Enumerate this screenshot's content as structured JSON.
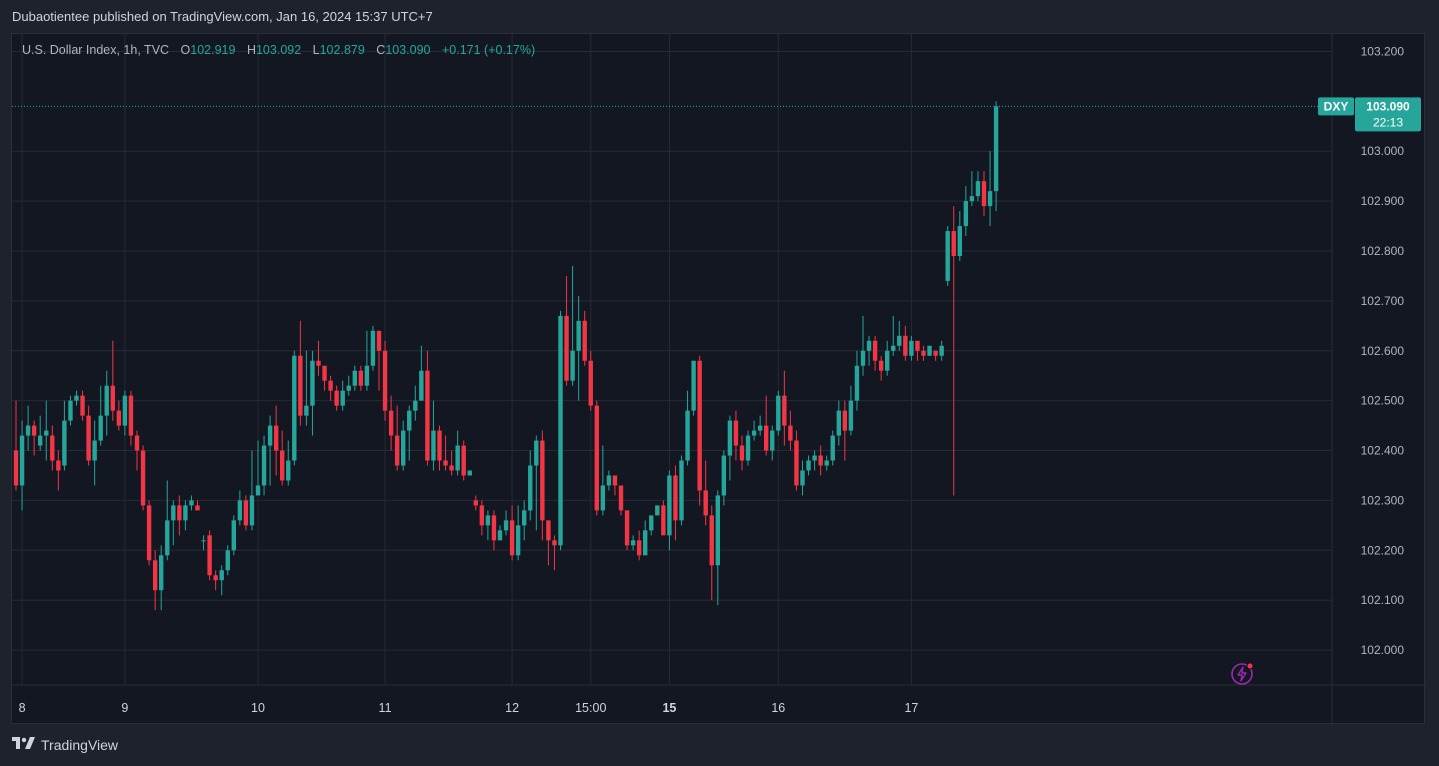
{
  "header": {
    "published": "Dubaotientee published on TradingView.com, Jan 16, 2024 15:37 UTC+7"
  },
  "legend": {
    "symbol": "U.S. Dollar Index, 1h, TVC",
    "open_label": "O",
    "open": "102.919",
    "high_label": "H",
    "high": "103.092",
    "low_label": "L",
    "low": "102.879",
    "close_label": "C",
    "close": "103.090",
    "change": "+0.171 (+0.17%)"
  },
  "price_tag": {
    "symbol": "DXY",
    "price": "103.090",
    "countdown": "22:13"
  },
  "footer": {
    "brand": "TradingView"
  },
  "colors": {
    "up": "#26a69a",
    "down": "#f23645",
    "grid": "#262a35",
    "background": "#131722"
  },
  "chart_data": {
    "type": "candlestick",
    "ylim": [
      101.93,
      103.235
    ],
    "yticks": [
      "103.200",
      "103.000",
      "102.900",
      "102.800",
      "102.700",
      "102.600",
      "102.500",
      "102.400",
      "102.300",
      "102.200",
      "102.100",
      "102.000"
    ],
    "xticks": [
      {
        "label": "8",
        "index": 1
      },
      {
        "label": "9",
        "index": 18
      },
      {
        "label": "10",
        "index": 40
      },
      {
        "label": "11",
        "index": 61
      },
      {
        "label": "12",
        "index": 82
      },
      {
        "label": "15:00",
        "index": 95
      },
      {
        "label": "15",
        "index": 108
      },
      {
        "label": "16",
        "index": 126
      },
      {
        "label": "17",
        "index": 148
      }
    ],
    "last_price": 103.09,
    "candles": [
      [
        102.4,
        102.33,
        102.5,
        102.32
      ],
      [
        102.33,
        102.43,
        102.46,
        102.28
      ],
      [
        102.43,
        102.45,
        102.49,
        102.4
      ],
      [
        102.45,
        102.43,
        102.46,
        102.39
      ],
      [
        102.41,
        102.43,
        102.47,
        102.4
      ],
      [
        102.43,
        102.44,
        102.5,
        102.38
      ],
      [
        102.43,
        102.38,
        102.45,
        102.36
      ],
      [
        102.38,
        102.36,
        102.4,
        102.32
      ],
      [
        102.37,
        102.46,
        102.5,
        102.36
      ],
      [
        102.46,
        102.5,
        102.51,
        102.45
      ],
      [
        102.5,
        102.51,
        102.52,
        102.49
      ],
      [
        102.51,
        102.47,
        102.52,
        102.46
      ],
      [
        102.47,
        102.38,
        102.49,
        102.37
      ],
      [
        102.38,
        102.42,
        102.46,
        102.33
      ],
      [
        102.42,
        102.47,
        102.53,
        102.41
      ],
      [
        102.47,
        102.53,
        102.56,
        102.43
      ],
      [
        102.53,
        102.48,
        102.62,
        102.46
      ],
      [
        102.48,
        102.45,
        102.5,
        102.44
      ],
      [
        102.45,
        102.51,
        102.52,
        102.43
      ],
      [
        102.51,
        102.43,
        102.52,
        102.41
      ],
      [
        102.43,
        102.4,
        102.44,
        102.36
      ],
      [
        102.4,
        102.29,
        102.41,
        102.28
      ],
      [
        102.29,
        102.18,
        102.3,
        102.17
      ],
      [
        102.18,
        102.12,
        102.2,
        102.08
      ],
      [
        102.12,
        102.19,
        102.21,
        102.08
      ],
      [
        102.19,
        102.26,
        102.34,
        102.18
      ],
      [
        102.26,
        102.29,
        102.3,
        102.21
      ],
      [
        102.29,
        102.26,
        102.31,
        102.23
      ],
      [
        102.26,
        102.29,
        102.3,
        102.24
      ],
      [
        102.29,
        102.3,
        102.31,
        102.28
      ],
      [
        102.29,
        102.28,
        102.3,
        102.28
      ],
      [
        102.22,
        102.22,
        102.23,
        102.2
      ],
      [
        102.23,
        102.15,
        102.24,
        102.14
      ],
      [
        102.15,
        102.14,
        102.16,
        102.12
      ],
      [
        102.14,
        102.16,
        102.17,
        102.11
      ],
      [
        102.16,
        102.2,
        102.21,
        102.15
      ],
      [
        102.2,
        102.26,
        102.27,
        102.19
      ],
      [
        102.26,
        102.3,
        102.32,
        102.25
      ],
      [
        102.3,
        102.25,
        102.31,
        102.24
      ],
      [
        102.25,
        102.31,
        102.4,
        102.24
      ],
      [
        102.31,
        102.33,
        102.42,
        102.31
      ],
      [
        102.33,
        102.41,
        102.43,
        102.31
      ],
      [
        102.41,
        102.45,
        102.47,
        102.33
      ],
      [
        102.45,
        102.4,
        102.49,
        102.35
      ],
      [
        102.4,
        102.34,
        102.44,
        102.33
      ],
      [
        102.34,
        102.38,
        102.42,
        102.33
      ],
      [
        102.38,
        102.59,
        102.6,
        102.37
      ],
      [
        102.59,
        102.47,
        102.66,
        102.45
      ],
      [
        102.47,
        102.49,
        102.6,
        102.45
      ],
      [
        102.49,
        102.58,
        102.6,
        102.43
      ],
      [
        102.58,
        102.57,
        102.62,
        102.55
      ],
      [
        102.57,
        102.54,
        102.56,
        102.52
      ],
      [
        102.54,
        102.52,
        102.55,
        102.5
      ],
      [
        102.52,
        102.49,
        102.53,
        102.48
      ],
      [
        102.49,
        102.52,
        102.54,
        102.48
      ],
      [
        102.52,
        102.53,
        102.55,
        102.51
      ],
      [
        102.53,
        102.56,
        102.57,
        102.52
      ],
      [
        102.56,
        102.53,
        102.57,
        102.52
      ],
      [
        102.53,
        102.57,
        102.64,
        102.52
      ],
      [
        102.57,
        102.64,
        102.65,
        102.56
      ],
      [
        102.64,
        102.6,
        102.64,
        102.52
      ],
      [
        102.6,
        102.48,
        102.62,
        102.46
      ],
      [
        102.48,
        102.43,
        102.51,
        102.4
      ],
      [
        102.43,
        102.37,
        102.49,
        102.36
      ],
      [
        102.37,
        102.44,
        102.46,
        102.36
      ],
      [
        102.44,
        102.48,
        102.49,
        102.38
      ],
      [
        102.48,
        102.5,
        102.53,
        102.46
      ],
      [
        102.5,
        102.56,
        102.61,
        102.5
      ],
      [
        102.56,
        102.38,
        102.6,
        102.37
      ],
      [
        102.38,
        102.44,
        102.5,
        102.36
      ],
      [
        102.44,
        102.38,
        102.45,
        102.36
      ],
      [
        102.38,
        102.37,
        102.43,
        102.36
      ],
      [
        102.37,
        102.36,
        102.4,
        102.35
      ],
      [
        102.36,
        102.41,
        102.44,
        102.35
      ],
      [
        102.41,
        102.35,
        102.42,
        102.34
      ],
      [
        102.35,
        102.36,
        102.36,
        102.35
      ],
      [
        102.3,
        102.29,
        102.31,
        102.28
      ],
      [
        102.29,
        102.25,
        102.3,
        102.23
      ],
      [
        102.25,
        102.27,
        102.28,
        102.22
      ],
      [
        102.27,
        102.22,
        102.28,
        102.2
      ],
      [
        102.22,
        102.24,
        102.25,
        102.22
      ],
      [
        102.24,
        102.26,
        102.28,
        102.23
      ],
      [
        102.26,
        102.19,
        102.29,
        102.18
      ],
      [
        102.19,
        102.25,
        102.29,
        102.18
      ],
      [
        102.25,
        102.28,
        102.3,
        102.22
      ],
      [
        102.28,
        102.37,
        102.4,
        102.26
      ],
      [
        102.37,
        102.42,
        102.43,
        102.24
      ],
      [
        102.42,
        102.26,
        102.44,
        102.22
      ],
      [
        102.26,
        102.22,
        102.26,
        102.17
      ],
      [
        102.22,
        102.21,
        102.23,
        102.16
      ],
      [
        102.21,
        102.67,
        102.68,
        102.2
      ],
      [
        102.67,
        102.54,
        102.75,
        102.53
      ],
      [
        102.54,
        102.6,
        102.77,
        102.53
      ],
      [
        102.6,
        102.66,
        102.71,
        102.5
      ],
      [
        102.66,
        102.58,
        102.68,
        102.57
      ],
      [
        102.58,
        102.49,
        102.6,
        102.48
      ],
      [
        102.49,
        102.28,
        102.5,
        102.27
      ],
      [
        102.28,
        102.33,
        102.41,
        102.27
      ],
      [
        102.33,
        102.35,
        102.36,
        102.32
      ],
      [
        102.35,
        102.33,
        102.34,
        102.31
      ],
      [
        102.33,
        102.28,
        102.31,
        102.27
      ],
      [
        102.28,
        102.21,
        102.28,
        102.2
      ],
      [
        102.21,
        102.22,
        102.23,
        102.2
      ],
      [
        102.22,
        102.19,
        102.24,
        102.18
      ],
      [
        102.19,
        102.24,
        102.26,
        102.22
      ],
      [
        102.24,
        102.27,
        102.27,
        102.23
      ],
      [
        102.27,
        102.29,
        102.29,
        102.27
      ],
      [
        102.29,
        102.23,
        102.3,
        102.23
      ],
      [
        102.23,
        102.35,
        102.36,
        102.2
      ],
      [
        102.35,
        102.26,
        102.37,
        102.22
      ],
      [
        102.26,
        102.38,
        102.39,
        102.25
      ],
      [
        102.38,
        102.48,
        102.52,
        102.37
      ],
      [
        102.48,
        102.58,
        102.58,
        102.47
      ],
      [
        102.58,
        102.32,
        102.59,
        102.29
      ],
      [
        102.32,
        102.27,
        102.38,
        102.25
      ],
      [
        102.27,
        102.17,
        102.29,
        102.1
      ],
      [
        102.17,
        102.31,
        102.32,
        102.09
      ],
      [
        102.31,
        102.39,
        102.4,
        102.29
      ],
      [
        102.39,
        102.46,
        102.47,
        102.34
      ],
      [
        102.46,
        102.41,
        102.48,
        102.38
      ],
      [
        102.41,
        102.38,
        102.43,
        102.36
      ],
      [
        102.38,
        102.43,
        102.44,
        102.37
      ],
      [
        102.43,
        102.44,
        102.46,
        102.42
      ],
      [
        102.44,
        102.45,
        102.47,
        102.43
      ],
      [
        102.45,
        102.4,
        102.51,
        102.39
      ],
      [
        102.4,
        102.44,
        102.45,
        102.38
      ],
      [
        102.44,
        102.51,
        102.52,
        102.43
      ],
      [
        102.51,
        102.45,
        102.56,
        102.41
      ],
      [
        102.45,
        102.42,
        102.48,
        102.4
      ],
      [
        102.42,
        102.33,
        102.44,
        102.32
      ],
      [
        102.33,
        102.36,
        102.38,
        102.31
      ],
      [
        102.36,
        102.38,
        102.39,
        102.35
      ],
      [
        102.38,
        102.39,
        102.4,
        102.36
      ],
      [
        102.39,
        102.37,
        102.41,
        102.35
      ],
      [
        102.37,
        102.38,
        102.39,
        102.36
      ],
      [
        102.38,
        102.43,
        102.44,
        102.37
      ],
      [
        102.43,
        102.48,
        102.5,
        102.41
      ],
      [
        102.48,
        102.44,
        102.5,
        102.38
      ],
      [
        102.44,
        102.5,
        102.53,
        102.43
      ],
      [
        102.5,
        102.57,
        102.6,
        102.48
      ],
      [
        102.57,
        102.6,
        102.67,
        102.55
      ],
      [
        102.6,
        102.62,
        102.63,
        102.57
      ],
      [
        102.62,
        102.58,
        102.63,
        102.56
      ],
      [
        102.58,
        102.56,
        102.59,
        102.54
      ],
      [
        102.56,
        102.6,
        102.62,
        102.55
      ],
      [
        102.6,
        102.61,
        102.67,
        102.59
      ],
      [
        102.61,
        102.63,
        102.66,
        102.6
      ],
      [
        102.63,
        102.59,
        102.65,
        102.58
      ],
      [
        102.59,
        102.62,
        102.63,
        102.58
      ],
      [
        102.62,
        102.6,
        102.62,
        102.58
      ],
      [
        102.6,
        102.59,
        102.61,
        102.58
      ],
      [
        102.59,
        102.61,
        102.61,
        102.59
      ],
      [
        102.6,
        102.59,
        102.6,
        102.58
      ],
      [
        102.59,
        102.61,
        102.62,
        102.58
      ],
      [
        102.74,
        102.84,
        102.85,
        102.73
      ],
      [
        102.84,
        102.79,
        102.89,
        102.31
      ],
      [
        102.79,
        102.85,
        102.88,
        102.78
      ],
      [
        102.85,
        102.9,
        102.93,
        102.83
      ],
      [
        102.9,
        102.91,
        102.96,
        102.89
      ],
      [
        102.91,
        102.94,
        102.96,
        102.9
      ],
      [
        102.94,
        102.89,
        102.96,
        102.87
      ],
      [
        102.89,
        102.92,
        103.0,
        102.85
      ],
      [
        102.92,
        103.09,
        103.1,
        102.88
      ]
    ]
  }
}
